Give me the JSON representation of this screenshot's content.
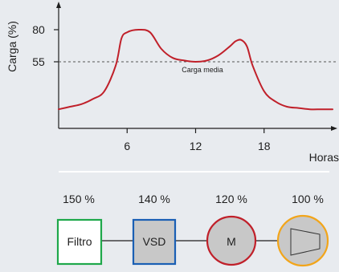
{
  "colors": {
    "background": "#e8ebef",
    "load_curve": "#c0202a",
    "average_line": "#555555",
    "filter_border": "#1ea84a",
    "vsd_border": "#1a5fb4",
    "vsd_fill": "#c8c8c8",
    "motor_fill": "#c8c8c8",
    "motor_border": "#c0202a",
    "pump_border": "#f2a51a",
    "pump_fill": "#c8c8c8",
    "divider": "#ffffff",
    "text": "#1e1e1e"
  },
  "chart_data": {
    "type": "line",
    "ylabel": "Carga (%)",
    "xlabel": "Horas",
    "x_ticks": [
      6,
      12,
      18
    ],
    "y_ticks": [
      55,
      80
    ],
    "xlim": [
      0,
      24
    ],
    "ylim": [
      0,
      100
    ],
    "grid": false,
    "average_line": {
      "value": 55,
      "label": "Carga media"
    },
    "series": [
      {
        "x": [
          0,
          1,
          2,
          3,
          4,
          5,
          5.5,
          6,
          7,
          8,
          9,
          10,
          11,
          12,
          13,
          14,
          15,
          15.5,
          16,
          16.5,
          17,
          18,
          19,
          20,
          21,
          22,
          23,
          24
        ],
        "y": [
          18,
          20,
          22,
          26,
          32,
          52,
          73,
          78,
          80,
          78,
          65,
          58,
          56,
          55,
          56,
          60,
          67,
          71,
          72,
          67,
          52,
          32,
          24,
          20,
          19,
          18,
          18,
          18
        ]
      }
    ]
  },
  "chain": [
    {
      "label": "Filtro",
      "percent": "150 %"
    },
    {
      "label": "VSD",
      "percent": "140 %"
    },
    {
      "label": "M",
      "percent": "120 %"
    },
    {
      "label": "",
      "percent": "100 %"
    }
  ]
}
